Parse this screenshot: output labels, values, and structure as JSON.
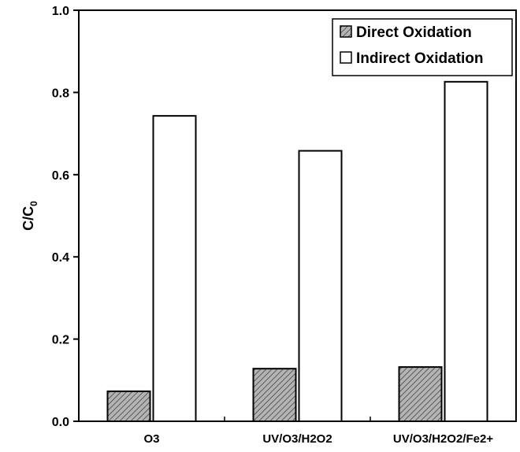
{
  "chart_data": {
    "type": "bar",
    "categories": [
      "O3",
      "UV/O3/H2O2",
      "UV/O3/H2O2/Fe2+"
    ],
    "series": [
      {
        "name": "Direct Oxidation",
        "values": [
          0.073,
          0.128,
          0.132
        ],
        "fill": "hatched",
        "color": "#9a9a9a"
      },
      {
        "name": "Indirect Oxidation",
        "values": [
          0.743,
          0.658,
          0.826
        ],
        "fill": "white",
        "color": "#ffffff"
      }
    ],
    "ylabel": "C/C0",
    "ylabel_main": "C/C",
    "ylabel_sub": "0",
    "xlabel": "",
    "ylim": [
      0,
      1.0
    ],
    "yticks": [
      "0.0",
      "0.2",
      "0.4",
      "0.6",
      "0.8",
      "1.0"
    ],
    "legend_position": "top-right",
    "grid": false
  }
}
